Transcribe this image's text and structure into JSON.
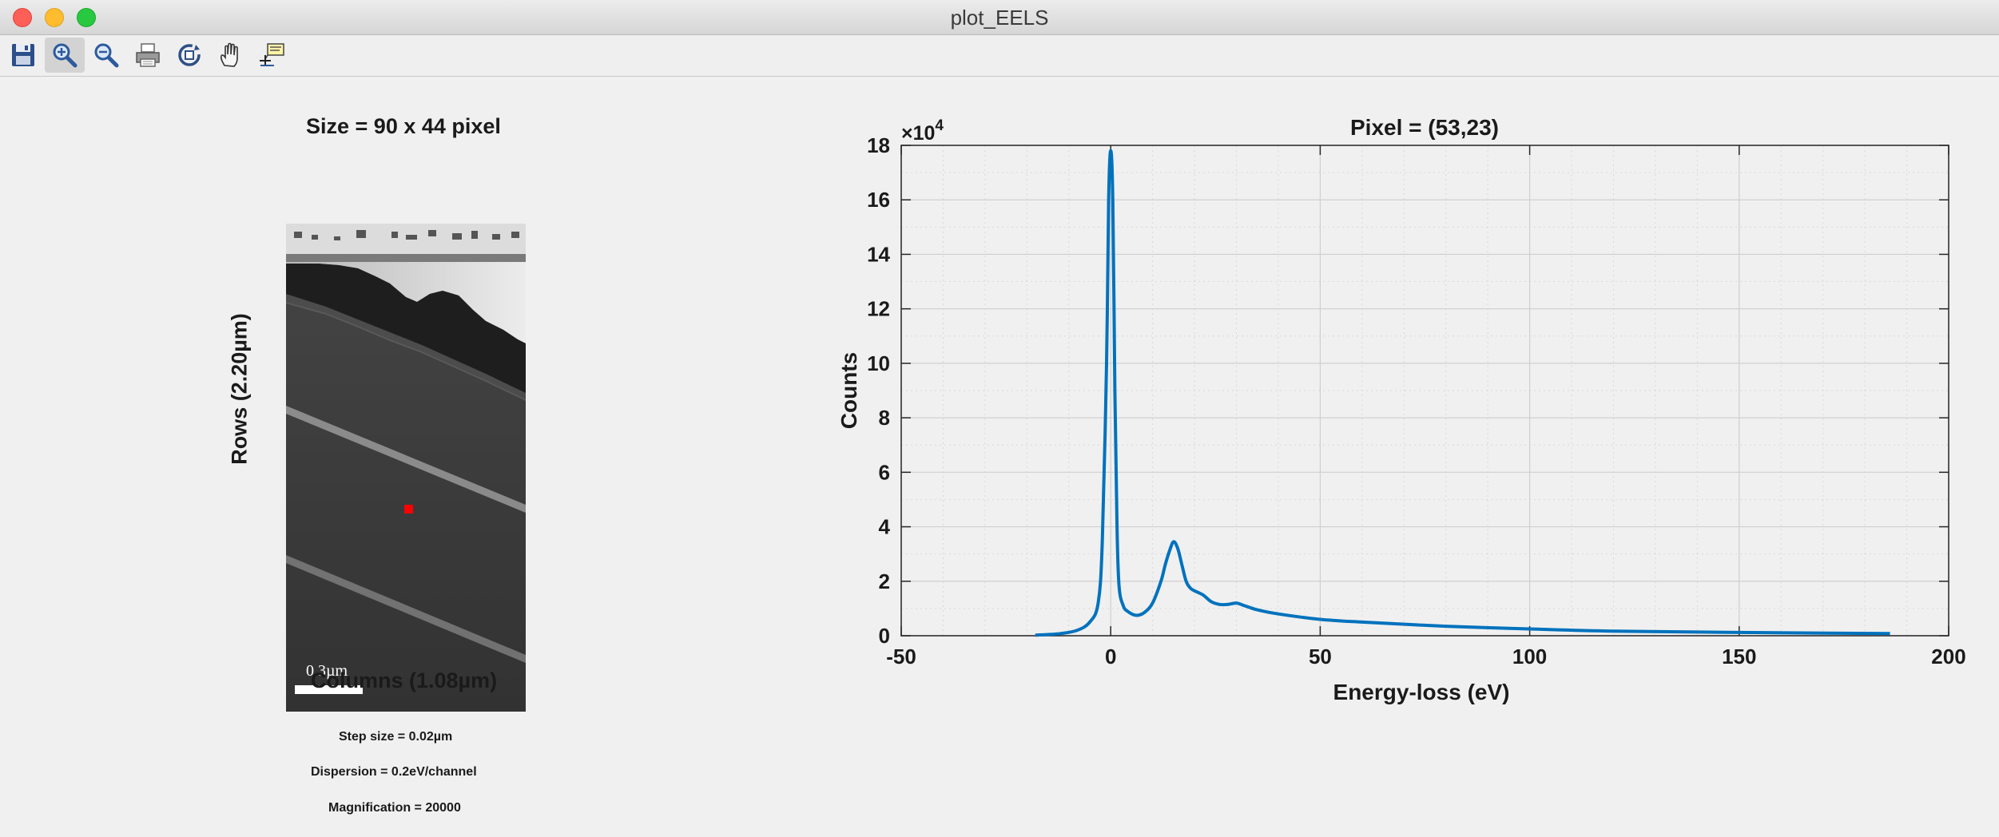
{
  "window": {
    "title": "plot_EELS"
  },
  "toolbar": {
    "buttons": [
      {
        "icon": "save-icon"
      },
      {
        "icon": "zoom-in-icon",
        "active": true
      },
      {
        "icon": "zoom-out-icon"
      },
      {
        "icon": "print-icon"
      },
      {
        "icon": "rotate-3d-icon"
      },
      {
        "icon": "pan-hand-icon"
      },
      {
        "icon": "data-cursor-icon"
      }
    ]
  },
  "image_panel": {
    "title": "Size = 90 x 44 pixel",
    "ylabel": "Rows (2.20µm)",
    "xlabel": "Columns (1.08µm)",
    "scale_bar_label": "0.3µm",
    "info": {
      "step": "Step size = 0.02µm",
      "dispersion": "Dispersion = 0.2eV/channel",
      "magnification": "Magnification = 20000"
    },
    "marker_color": "#ff0000"
  },
  "chart_data": {
    "type": "line",
    "title": "Pixel = (53,23)",
    "xlabel": "Energy-loss (eV)",
    "ylabel": "Counts",
    "y_exponent_label": "×10",
    "y_exponent": "4",
    "xlim": [
      -50,
      200
    ],
    "ylim": [
      0,
      18
    ],
    "xticks": [
      -50,
      0,
      50,
      100,
      150,
      200
    ],
    "yticks": [
      0,
      2,
      4,
      6,
      8,
      10,
      12,
      14,
      16,
      18
    ],
    "grid": true,
    "minor_grid": true,
    "line_color": "#0072bd",
    "series": [
      {
        "x": [
          -18,
          -12,
          -8,
          -5,
          -3,
          -2,
          -1,
          -0.5,
          0,
          0.5,
          1,
          1.5,
          2,
          3,
          4,
          6,
          8,
          10,
          12,
          13,
          14,
          15,
          16,
          17,
          18,
          19,
          20,
          22,
          24,
          26,
          28,
          30,
          32,
          35,
          40,
          50,
          60,
          80,
          100,
          120,
          150,
          186
        ],
        "y": [
          0.02,
          0.08,
          0.2,
          0.5,
          1.2,
          3.5,
          10.0,
          16.0,
          17.8,
          16.0,
          9.0,
          4.0,
          1.8,
          1.1,
          0.9,
          0.75,
          0.85,
          1.2,
          2.0,
          2.6,
          3.1,
          3.45,
          3.2,
          2.6,
          2.0,
          1.75,
          1.65,
          1.5,
          1.25,
          1.15,
          1.15,
          1.2,
          1.1,
          0.95,
          0.8,
          0.6,
          0.5,
          0.35,
          0.25,
          0.17,
          0.12,
          0.08
        ]
      }
    ]
  }
}
